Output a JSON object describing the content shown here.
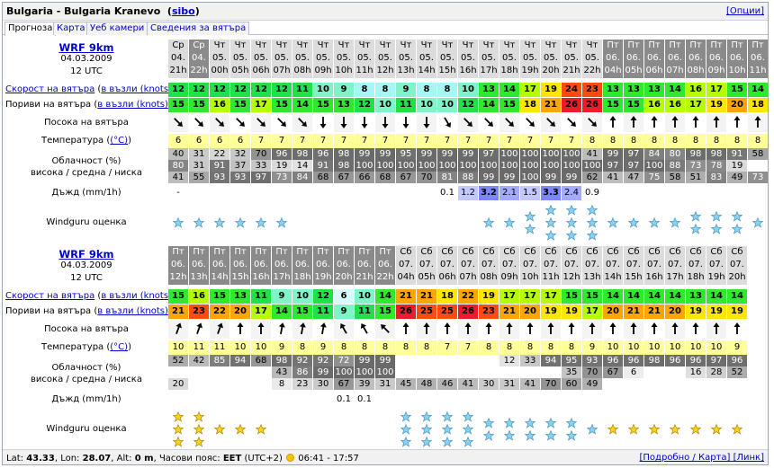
{
  "title": {
    "text": "Bulgaria - Bulgaria Kranevo",
    "link": "sibo",
    "options": "[Опции]"
  },
  "tabs": [
    "Прогноза",
    "Карта",
    "Уеб камери",
    "Сведения за вятъра"
  ],
  "labels": {
    "model": "WRF 9km",
    "speed": "Скорост на вятъра",
    "speed_unit": "в възли (knots)",
    "gusts": "Пориви на вятъра",
    "gusts_unit": "в възли (knots)",
    "direction": "Посока на вятъра",
    "temperature": "Температура",
    "temp_unit": "(°C)",
    "cloud_1": "Облачност (%)",
    "cloud_2": "висока / средна / ниска",
    "rain": "Дъжд (mm/1h)",
    "rating": "Windguru оценка"
  },
  "blocks": [
    {
      "date": "04.03.2009",
      "utc": "12 UTC",
      "cols": [
        {
          "d": "Ср",
          "n": "04.",
          "h": "21h",
          "dark": false,
          "spd": 12,
          "gst": 15,
          "dir": 135,
          "t": 6,
          "ch": 40,
          "cm": 80,
          "cl": 41,
          "r": "-",
          "st": 1
        },
        {
          "d": "Ср",
          "n": "04.",
          "h": "22h",
          "dark": true,
          "spd": 12,
          "gst": 15,
          "dir": 135,
          "t": 6,
          "ch": 31,
          "cm": 31,
          "cl": 55,
          "r": "",
          "st": 1
        },
        {
          "d": "Чт",
          "n": "05.",
          "h": "00h",
          "dark": false,
          "spd": 12,
          "gst": 16,
          "dir": 135,
          "t": 6,
          "ch": 22,
          "cm": 91,
          "cl": 93,
          "r": "",
          "st": 1
        },
        {
          "d": "Чт",
          "n": "05.",
          "h": "05h",
          "dark": false,
          "spd": 12,
          "gst": 15,
          "dir": 135,
          "t": 6,
          "ch": 32,
          "cm": 37,
          "cl": 93,
          "r": "",
          "st": 1
        },
        {
          "d": "Чт",
          "n": "05.",
          "h": "06h",
          "dark": false,
          "spd": 12,
          "gst": 17,
          "dir": 135,
          "t": 7,
          "ch": 70,
          "cm": 33,
          "cl": 97,
          "r": "",
          "st": 1
        },
        {
          "d": "Чт",
          "n": "05.",
          "h": "07h",
          "dark": false,
          "spd": 12,
          "gst": 15,
          "dir": 135,
          "t": 7,
          "ch": 96,
          "cm": 19,
          "cl": 73,
          "r": "",
          "st": 1
        },
        {
          "d": "Чт",
          "n": "05.",
          "h": "08h",
          "dark": false,
          "spd": 11,
          "gst": 14,
          "dir": 135,
          "t": 7,
          "ch": 98,
          "cm": 14,
          "cl": 84,
          "r": "",
          "st": 0
        },
        {
          "d": "Чт",
          "n": "05.",
          "h": "09h",
          "dark": false,
          "spd": 10,
          "gst": 15,
          "dir": 180,
          "t": 7,
          "ch": 96,
          "cm": 91,
          "cl": 68,
          "r": "",
          "st": 0
        },
        {
          "d": "Чт",
          "n": "05.",
          "h": "10h",
          "dark": false,
          "spd": 9,
          "gst": 13,
          "dir": 180,
          "t": 7,
          "ch": 98,
          "cm": 98,
          "cl": 67,
          "r": "",
          "st": 0
        },
        {
          "d": "Чт",
          "n": "05.",
          "h": "11h",
          "dark": false,
          "spd": 8,
          "gst": 12,
          "dir": 180,
          "t": 7,
          "ch": 99,
          "cm": 100,
          "cl": 66,
          "r": "",
          "st": 0
        },
        {
          "d": "Чт",
          "n": "05.",
          "h": "12h",
          "dark": false,
          "spd": 8,
          "gst": 10,
          "dir": 180,
          "t": 7,
          "ch": 99,
          "cm": 100,
          "cl": 68,
          "r": "",
          "st": 0
        },
        {
          "d": "Чт",
          "n": "05.",
          "h": "13h",
          "dark": false,
          "spd": 9,
          "gst": 11,
          "dir": 180,
          "t": 7,
          "ch": 95,
          "cm": 100,
          "cl": 67,
          "r": "",
          "st": 0
        },
        {
          "d": "Чт",
          "n": "05.",
          "h": "14h",
          "dark": false,
          "spd": 8,
          "gst": 10,
          "dir": 180,
          "t": 7,
          "ch": 99,
          "cm": 100,
          "cl": 70,
          "r": "",
          "st": 0
        },
        {
          "d": "Чт",
          "n": "05.",
          "h": "15h",
          "dark": false,
          "spd": 8,
          "gst": 10,
          "dir": 150,
          "t": 7,
          "ch": 99,
          "cm": 100,
          "cl": 81,
          "r": "0.1",
          "st": 0
        },
        {
          "d": "Чт",
          "n": "05.",
          "h": "16h",
          "dark": false,
          "spd": 10,
          "gst": 12,
          "dir": 135,
          "t": 7,
          "ch": 99,
          "cm": 100,
          "cl": 88,
          "r": "1.2",
          "st": 0
        },
        {
          "d": "Чт",
          "n": "05.",
          "h": "17h",
          "dark": false,
          "spd": 13,
          "gst": 14,
          "dir": 135,
          "t": 7,
          "ch": 97,
          "cm": 100,
          "cl": 99,
          "r": "3.2",
          "st": 1
        },
        {
          "d": "Чт",
          "n": "05.",
          "h": "18h",
          "dark": false,
          "spd": 14,
          "gst": 15,
          "dir": 135,
          "t": 7,
          "ch": 100,
          "cm": 100,
          "cl": 99,
          "r": "2.1",
          "st": 1
        },
        {
          "d": "Чт",
          "n": "05.",
          "h": "19h",
          "dark": false,
          "spd": 17,
          "gst": 18,
          "dir": 135,
          "t": 7,
          "ch": 100,
          "cm": 100,
          "cl": 100,
          "r": "1.5",
          "st": 2
        },
        {
          "d": "Чт",
          "n": "05.",
          "h": "20h",
          "dark": false,
          "spd": 19,
          "gst": 21,
          "dir": 135,
          "t": 7,
          "ch": 100,
          "cm": 100,
          "cl": 99,
          "r": "3.3",
          "st": 3
        },
        {
          "d": "Чт",
          "n": "05.",
          "h": "21h",
          "dark": false,
          "spd": 24,
          "gst": 26,
          "dir": 135,
          "t": 7,
          "ch": 100,
          "cm": 100,
          "cl": 99,
          "r": "2.4",
          "st": 3
        },
        {
          "d": "Чт",
          "n": "05.",
          "h": "22h",
          "dark": false,
          "spd": 23,
          "gst": 26,
          "dir": 135,
          "t": 8,
          "ch": 41,
          "cm": 100,
          "cl": 62,
          "r": "0.9",
          "st": 3
        },
        {
          "d": "Пт",
          "n": "06.",
          "h": "04h",
          "dark": true,
          "spd": 13,
          "gst": 15,
          "dir": 0,
          "t": 8,
          "ch": 99,
          "cm": 97,
          "cl": 41,
          "r": "",
          "st": 1
        },
        {
          "d": "Пт",
          "n": "06.",
          "h": "05h",
          "dark": true,
          "spd": 13,
          "gst": 15,
          "dir": 0,
          "t": 8,
          "ch": 97,
          "cm": 97,
          "cl": 47,
          "r": "",
          "st": 1
        },
        {
          "d": "Пт",
          "n": "06.",
          "h": "06h",
          "dark": true,
          "spd": 13,
          "gst": 16,
          "dir": 0,
          "t": 8,
          "ch": 84,
          "cm": 100,
          "cl": 75,
          "r": "",
          "st": 1
        },
        {
          "d": "Пт",
          "n": "06.",
          "h": "07h",
          "dark": true,
          "spd": 14,
          "gst": 16,
          "dir": 0,
          "t": 8,
          "ch": 80,
          "cm": 88,
          "cl": 58,
          "r": "",
          "st": 1
        },
        {
          "d": "Пт",
          "n": "06.",
          "h": "08h",
          "dark": true,
          "spd": 16,
          "gst": 17,
          "dir": 0,
          "t": 8,
          "ch": 98,
          "cm": 73,
          "cl": 51,
          "r": "",
          "st": 2
        },
        {
          "d": "Пт",
          "n": "06.",
          "h": "09h",
          "dark": true,
          "spd": 17,
          "gst": 19,
          "dir": 0,
          "t": 8,
          "ch": 98,
          "cm": 78,
          "cl": 83,
          "r": "",
          "st": 2
        },
        {
          "d": "Пт",
          "n": "06.",
          "h": "10h",
          "dark": true,
          "spd": 15,
          "gst": 20,
          "dir": 0,
          "t": 8,
          "ch": 91,
          "cm": 19,
          "cl": 49,
          "r": "",
          "st": 2
        },
        {
          "d": "Пт",
          "n": "06.",
          "h": "11h",
          "dark": true,
          "spd": 14,
          "gst": 18,
          "dir": 0,
          "t": 8,
          "ch": 58,
          "cm": "",
          "cl": 73,
          "r": "",
          "st": 1
        }
      ]
    },
    {
      "date": "04.03.2009",
      "utc": "12 UTC",
      "cols": [
        {
          "d": "Пт",
          "n": "06.",
          "h": "12h",
          "dark": true,
          "spd": 15,
          "gst": 21,
          "dir": 20,
          "t": 10,
          "ch": 52,
          "cm": "",
          "cl": 20,
          "r": "",
          "st": 3,
          "gold": true
        },
        {
          "d": "Пт",
          "n": "06.",
          "h": "13h",
          "dark": true,
          "spd": 16,
          "gst": 23,
          "dir": 20,
          "t": 11,
          "ch": 42,
          "cm": "",
          "cl": "",
          "r": "",
          "st": 3,
          "gold": true
        },
        {
          "d": "Пт",
          "n": "06.",
          "h": "14h",
          "dark": true,
          "spd": 15,
          "gst": 22,
          "dir": 20,
          "t": 11,
          "ch": 85,
          "cm": "",
          "cl": "",
          "r": "",
          "st": 1,
          "gold": true
        },
        {
          "d": "Пт",
          "n": "06.",
          "h": "15h",
          "dark": true,
          "spd": 13,
          "gst": 20,
          "dir": 0,
          "t": 10,
          "ch": 94,
          "cm": "",
          "cl": "",
          "r": "",
          "st": 1,
          "gold": true
        },
        {
          "d": "Пт",
          "n": "06.",
          "h": "16h",
          "dark": true,
          "spd": 11,
          "gst": 17,
          "dir": 0,
          "t": 10,
          "ch": 68,
          "cm": "",
          "cl": "",
          "r": "",
          "st": 1,
          "gold": true
        },
        {
          "d": "Пт",
          "n": "06.",
          "h": "17h",
          "dark": true,
          "spd": 9,
          "gst": 14,
          "dir": 10,
          "t": 9,
          "ch": 98,
          "cm": 43,
          "cl": 8,
          "r": "",
          "st": 0
        },
        {
          "d": "Пт",
          "n": "06.",
          "h": "18h",
          "dark": true,
          "spd": 10,
          "gst": 15,
          "dir": 10,
          "t": 8,
          "ch": 92,
          "cm": 86,
          "cl": 23,
          "r": "",
          "st": 0
        },
        {
          "d": "Пт",
          "n": "06.",
          "h": "19h",
          "dark": true,
          "spd": 12,
          "gst": 11,
          "dir": 10,
          "t": 9,
          "ch": 92,
          "cm": 99,
          "cl": 30,
          "r": "",
          "st": 0
        },
        {
          "d": "Пт",
          "n": "06.",
          "h": "20h",
          "dark": true,
          "spd": 6,
          "gst": 9,
          "dir": 330,
          "t": 8,
          "ch": 72,
          "cm": 100,
          "cl": 67,
          "r": "0.1",
          "st": 0
        },
        {
          "d": "Пт",
          "n": "06.",
          "h": "21h",
          "dark": true,
          "spd": 10,
          "gst": 11,
          "dir": 330,
          "t": 8,
          "ch": 99,
          "cm": 100,
          "cl": 39,
          "r": "0.1",
          "st": 0
        },
        {
          "d": "Пт",
          "n": "06.",
          "h": "22h",
          "dark": true,
          "spd": 14,
          "gst": 15,
          "dir": 315,
          "t": 8,
          "ch": 99,
          "cm": 100,
          "cl": 31,
          "r": "",
          "st": 0
        },
        {
          "d": "Сб",
          "n": "07.",
          "h": "04h",
          "dark": false,
          "spd": 21,
          "gst": 26,
          "dir": 0,
          "t": 8,
          "ch": "",
          "cm": "",
          "cl": 45,
          "r": "",
          "st": 3
        },
        {
          "d": "Сб",
          "n": "07.",
          "h": "05h",
          "dark": false,
          "spd": 21,
          "gst": 25,
          "dir": 0,
          "t": 8,
          "ch": "",
          "cm": "",
          "cl": 48,
          "r": "",
          "st": 3
        },
        {
          "d": "Сб",
          "n": "07.",
          "h": "06h",
          "dark": false,
          "spd": 18,
          "gst": 25,
          "dir": 0,
          "t": 7,
          "ch": "",
          "cm": "",
          "cl": 46,
          "r": "",
          "st": 3
        },
        {
          "d": "Сб",
          "n": "07.",
          "h": "07h",
          "dark": false,
          "spd": 22,
          "gst": 26,
          "dir": 0,
          "t": 7,
          "ch": "",
          "cm": "",
          "cl": 41,
          "r": "",
          "st": 3
        },
        {
          "d": "Сб",
          "n": "07.",
          "h": "08h",
          "dark": false,
          "spd": 19,
          "gst": 23,
          "dir": 0,
          "t": 8,
          "ch": "",
          "cm": "",
          "cl": 30,
          "r": "",
          "st": 2
        },
        {
          "d": "Сб",
          "n": "07.",
          "h": "09h",
          "dark": false,
          "spd": 17,
          "gst": 21,
          "dir": 0,
          "t": 8,
          "ch": 12,
          "cm": "",
          "cl": 31,
          "r": "",
          "st": 2
        },
        {
          "d": "Сб",
          "n": "07.",
          "h": "10h",
          "dark": false,
          "spd": 17,
          "gst": 20,
          "dir": 0,
          "t": 8,
          "ch": 33,
          "cm": "",
          "cl": 41,
          "r": "",
          "st": 2
        },
        {
          "d": "Сб",
          "n": "07.",
          "h": "11h",
          "dark": false,
          "spd": 17,
          "gst": 19,
          "dir": 0,
          "t": 8,
          "ch": 94,
          "cm": "",
          "cl": 70,
          "r": "",
          "st": 2
        },
        {
          "d": "Сб",
          "n": "07.",
          "h": "12h",
          "dark": false,
          "spd": 15,
          "gst": 19,
          "dir": 0,
          "t": 8,
          "ch": 95,
          "cm": 35,
          "cl": 60,
          "r": "",
          "st": 2
        },
        {
          "d": "Сб",
          "n": "07.",
          "h": "13h",
          "dark": false,
          "spd": 15,
          "gst": 17,
          "dir": 0,
          "t": 9,
          "ch": 93,
          "cm": 70,
          "cl": 49,
          "r": "",
          "st": 1
        },
        {
          "d": "Сб",
          "n": "07.",
          "h": "14h",
          "dark": false,
          "spd": 14,
          "gst": 20,
          "dir": 0,
          "t": 10,
          "ch": 96,
          "cm": 67,
          "cl": "",
          "r": "",
          "st": 1,
          "gold": true
        },
        {
          "d": "Сб",
          "n": "07.",
          "h": "15h",
          "dark": false,
          "spd": 14,
          "gst": 21,
          "dir": 0,
          "t": 10,
          "ch": 96,
          "cm": 6,
          "cl": "",
          "r": "",
          "st": 1,
          "gold": true
        },
        {
          "d": "Сб",
          "n": "07.",
          "h": "16h",
          "dark": false,
          "spd": 14,
          "gst": 21,
          "dir": 0,
          "t": 10,
          "ch": 98,
          "cm": "",
          "cl": "",
          "r": "",
          "st": 1,
          "gold": true
        },
        {
          "d": "Сб",
          "n": "07.",
          "h": "17h",
          "dark": false,
          "spd": 14,
          "gst": 20,
          "dir": 0,
          "t": 10,
          "ch": 96,
          "cm": "",
          "cl": "",
          "r": "",
          "st": 1,
          "gold": true
        },
        {
          "d": "Сб",
          "n": "07.",
          "h": "18h",
          "dark": false,
          "spd": 13,
          "gst": 19,
          "dir": 0,
          "t": 10,
          "ch": 96,
          "cm": 16,
          "cl": "",
          "r": "",
          "st": 1,
          "gold": true
        },
        {
          "d": "Сб",
          "n": "07.",
          "h": "19h",
          "dark": false,
          "spd": 14,
          "gst": 19,
          "dir": 0,
          "t": 10,
          "ch": 97,
          "cm": 28,
          "cl": "",
          "r": "",
          "st": 1,
          "gold": true
        },
        {
          "d": "Сб",
          "n": "07.",
          "h": "20h",
          "dark": false,
          "spd": 14,
          "gst": 19,
          "dir": 0,
          "t": 9,
          "ch": 96,
          "cm": 52,
          "cl": "",
          "r": "",
          "st": 1,
          "gold": true
        }
      ]
    }
  ],
  "footer": {
    "lat_label": "Lat:",
    "lat": "43.33",
    "lon_label": "Lon:",
    "lon": "28.07",
    "alt_label": "Alt:",
    "alt": "0 m",
    "tz_label": "Часови пояс:",
    "tz": "EET",
    "tz_offset": "(UTC+2)",
    "sun": "06:41 - 17:57",
    "right": "[Подробно / Карта] [Линк]"
  }
}
